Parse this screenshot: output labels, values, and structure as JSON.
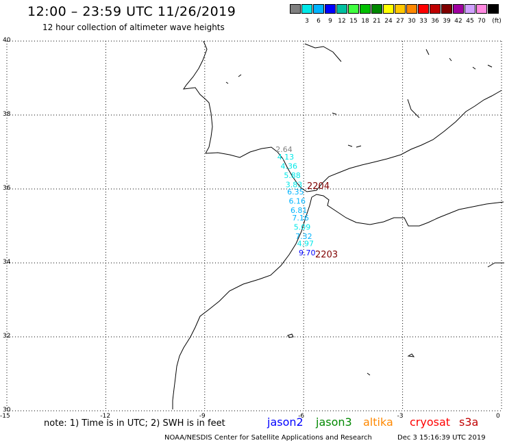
{
  "header": {
    "title": "12:00 – 23:59 UTC 11/26/2019",
    "subtitle": "12 hour collection of altimeter wave heights"
  },
  "legend": {
    "unit": "(ft)",
    "items": [
      {
        "color": "#808080",
        "label": ""
      },
      {
        "color": "#00e8e8",
        "label": "3"
      },
      {
        "color": "#00b4ff",
        "label": "6"
      },
      {
        "color": "#0000ff",
        "label": "9"
      },
      {
        "color": "#00c0a0",
        "label": "12"
      },
      {
        "color": "#40ff40",
        "label": "15"
      },
      {
        "color": "#00c000",
        "label": "18"
      },
      {
        "color": "#008800",
        "label": "21"
      },
      {
        "color": "#ffff00",
        "label": "24"
      },
      {
        "color": "#ffc800",
        "label": "27"
      },
      {
        "color": "#ff8800",
        "label": "30"
      },
      {
        "color": "#ff0000",
        "label": "33"
      },
      {
        "color": "#c00000",
        "label": "36"
      },
      {
        "color": "#800000",
        "label": "39"
      },
      {
        "color": "#a000a0",
        "label": "42"
      },
      {
        "color": "#d0a0ff",
        "label": "45"
      },
      {
        "color": "#ff88e0",
        "label": "70"
      },
      {
        "color": "#000000",
        "label": ""
      }
    ]
  },
  "axes": {
    "lon_ticks": [
      "-15",
      "-12",
      "-9",
      "-6",
      "-3",
      "0"
    ],
    "lat_ticks": [
      "40",
      "38",
      "36",
      "34",
      "32",
      "30"
    ],
    "lon_range": [
      -15,
      0
    ],
    "lat_range": [
      30,
      40
    ]
  },
  "map_data": {
    "wave_heights": [
      {
        "value": "2.64",
        "lon": -6.85,
        "lat": 37.0,
        "color": "#808080"
      },
      {
        "value": "4.13",
        "lon": -6.8,
        "lat": 36.8,
        "color": "#00e8e8"
      },
      {
        "value": "4.36",
        "lon": -6.7,
        "lat": 36.55,
        "color": "#00e8e8"
      },
      {
        "value": "5.88",
        "lon": -6.6,
        "lat": 36.3,
        "color": "#00e8e8"
      },
      {
        "value": "3.83",
        "lon": -6.55,
        "lat": 36.05,
        "color": "#00e8e8"
      },
      {
        "value": "6.35",
        "lon": -6.5,
        "lat": 35.85,
        "color": "#00b4ff"
      },
      {
        "value": "6.16",
        "lon": -6.45,
        "lat": 35.6,
        "color": "#00b4ff"
      },
      {
        "value": "6.81",
        "lon": -6.4,
        "lat": 35.35,
        "color": "#00b4ff"
      },
      {
        "value": "7.16",
        "lon": -6.35,
        "lat": 35.15,
        "color": "#00b4ff"
      },
      {
        "value": "5.09",
        "lon": -6.3,
        "lat": 34.9,
        "color": "#00e8e8"
      },
      {
        "value": "7.32",
        "lon": -6.25,
        "lat": 34.65,
        "color": "#00b4ff"
      },
      {
        "value": "4.97",
        "lon": -6.2,
        "lat": 34.45,
        "color": "#00e8e8"
      },
      {
        "value": "9.70",
        "lon": -6.15,
        "lat": 34.2,
        "color": "#0000ff"
      }
    ],
    "pass_times": [
      {
        "time": "2204",
        "lon": -5.9,
        "lat": 36.0,
        "color": "#800000"
      },
      {
        "time": "2203",
        "lon": -5.65,
        "lat": 34.15,
        "color": "#800000"
      }
    ]
  },
  "footer": {
    "note": "note:  1) Time is in UTC;  2) SWH is in feet",
    "satellites": [
      {
        "name": "jason2",
        "color": "#0000ff"
      },
      {
        "name": "jason3",
        "color": "#008800"
      },
      {
        "name": "altika",
        "color": "#ff8800"
      },
      {
        "name": "cryosat",
        "color": "#ff0000"
      },
      {
        "name": "s3a",
        "color": "#c00000"
      }
    ],
    "credit": "NOAA/NESDIS Center for Satellite Applications and Research",
    "stamp": "Dec  3 15:16:39 UTC 2019"
  }
}
